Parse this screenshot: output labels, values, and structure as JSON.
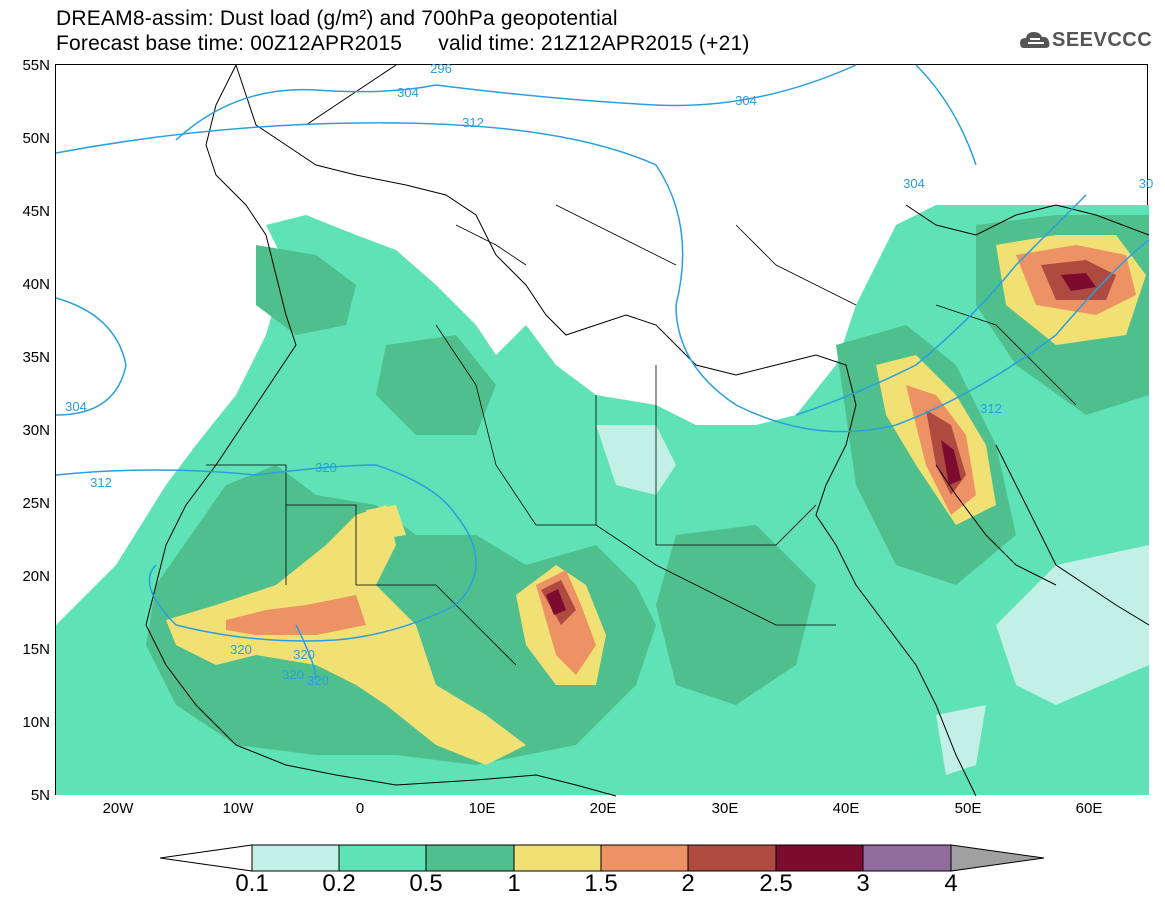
{
  "header": {
    "title_line1": "DREAM8-assim: Dust load (g/m²) and 700hPa geopotential",
    "title_line2": "Forecast base time: 00Z12APR2015      valid time: 21Z12APR2015 (+21)"
  },
  "logo": {
    "text": "SEEVCCC",
    "icon": "cloud-logo-icon"
  },
  "axes": {
    "lat_labels": [
      "55N",
      "50N",
      "45N",
      "40N",
      "35N",
      "30N",
      "25N",
      "20N",
      "15N",
      "10N",
      "5N"
    ],
    "lon_labels": [
      "20W",
      "10W",
      "0",
      "10E",
      "20E",
      "30E",
      "40E",
      "50E",
      "60E"
    ]
  },
  "contour_labels": [
    "296",
    "304",
    "312",
    "304",
    "304",
    "304",
    "312",
    "320",
    "320",
    "320",
    "320",
    "320",
    "312",
    "30"
  ],
  "colorbar": {
    "labels": [
      "0.1",
      "0.2",
      "0.5",
      "1",
      "1.5",
      "2",
      "2.5",
      "3",
      "4"
    ],
    "colors": [
      "#c2f0e4",
      "#5ee2b6",
      "#4fbf8d",
      "#f1e174",
      "#ec9264",
      "#ae4a40",
      "#7d0b30",
      "#8f6c9c"
    ],
    "under_color": "#ffffff",
    "over_color": "#a0a0a0"
  },
  "colors": {
    "contour": "#2a9fe0",
    "coast": "#000000"
  }
}
